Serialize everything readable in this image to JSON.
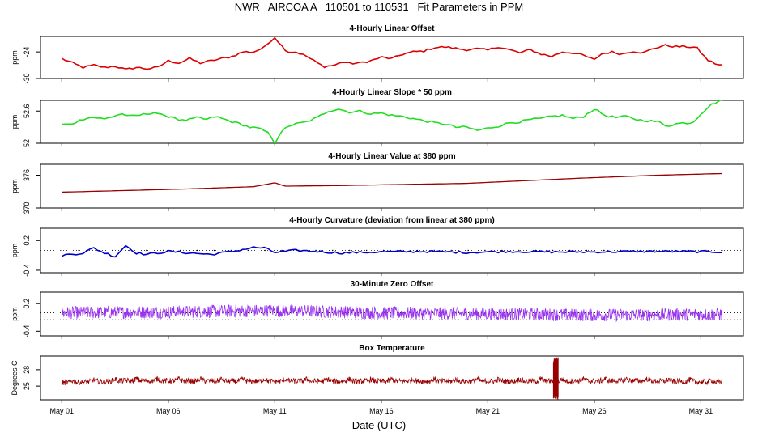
{
  "figure": {
    "title": "NWR   AIRCOA A   110501 to 110531   Fit Parameters in PPM",
    "xlabel": "Date (UTC)"
  },
  "chart_data": [
    {
      "type": "line",
      "title": "4-Hourly Linear Offset",
      "ylabel": "ppm",
      "ylim": [
        -30,
        -20.5
      ],
      "yticks": [
        -30,
        -24
      ],
      "color": "#dd0000",
      "style": "line",
      "series": [
        {
          "name": "offset",
          "anchors": [
            [
              1.0,
              -25.5
            ],
            [
              1.5,
              -26.5
            ],
            [
              2.0,
              -27.5
            ],
            [
              2.5,
              -27.0
            ],
            [
              3.0,
              -27.5
            ],
            [
              3.5,
              -27.2
            ],
            [
              4.0,
              -28.0
            ],
            [
              4.5,
              -27.5
            ],
            [
              5.0,
              -27.8
            ],
            [
              5.5,
              -27.5
            ],
            [
              6.0,
              -26.0
            ],
            [
              6.5,
              -26.5
            ],
            [
              7.0,
              -25.5
            ],
            [
              7.5,
              -26.5
            ],
            [
              8.0,
              -26.0
            ],
            [
              8.5,
              -25.5
            ],
            [
              9.0,
              -25.0
            ],
            [
              9.5,
              -24.0
            ],
            [
              10.0,
              -24.0
            ],
            [
              10.5,
              -23.0
            ],
            [
              10.8,
              -21.5
            ],
            [
              11.0,
              -20.7
            ],
            [
              11.3,
              -22.5
            ],
            [
              11.6,
              -24.0
            ],
            [
              12.0,
              -24.0
            ],
            [
              12.5,
              -25.0
            ],
            [
              13.0,
              -26.5
            ],
            [
              13.3,
              -27.3
            ],
            [
              13.8,
              -27.0
            ],
            [
              14.2,
              -26.2
            ],
            [
              14.5,
              -26.6
            ],
            [
              15.0,
              -26.5
            ],
            [
              15.5,
              -26.0
            ],
            [
              16.0,
              -25.2
            ],
            [
              16.5,
              -25.5
            ],
            [
              17.0,
              -24.5
            ],
            [
              17.5,
              -24.0
            ],
            [
              18.0,
              -23.8
            ],
            [
              18.5,
              -23.0
            ],
            [
              19.0,
              -22.9
            ],
            [
              19.5,
              -23.2
            ],
            [
              20.0,
              -23.5
            ],
            [
              20.5,
              -23.3
            ],
            [
              21.0,
              -23.6
            ],
            [
              21.5,
              -22.8
            ],
            [
              22.0,
              -23.5
            ],
            [
              22.5,
              -24.2
            ],
            [
              23.0,
              -23.5
            ],
            [
              23.5,
              -24.5
            ],
            [
              24.0,
              -25.0
            ],
            [
              24.5,
              -24.0
            ],
            [
              25.0,
              -24.2
            ],
            [
              25.5,
              -24.8
            ],
            [
              26.0,
              -25.8
            ],
            [
              26.3,
              -24.5
            ],
            [
              26.8,
              -24.0
            ],
            [
              27.3,
              -24.5
            ],
            [
              27.8,
              -23.8
            ],
            [
              28.3,
              -24.2
            ],
            [
              28.8,
              -23.2
            ],
            [
              29.3,
              -22.5
            ],
            [
              29.8,
              -22.8
            ],
            [
              30.3,
              -22.8
            ],
            [
              30.8,
              -23.0
            ],
            [
              31.3,
              -25.8
            ],
            [
              31.8,
              -26.9
            ],
            [
              32.0,
              -27.0
            ]
          ]
        }
      ]
    },
    {
      "type": "line",
      "title": "4-Hourly Linear Slope * 50 ppm",
      "ylabel": "ppm",
      "ylim": [
        52.0,
        52.8
      ],
      "yticks": [
        52.0,
        52.6
      ],
      "color": "#22dd22",
      "style": "line",
      "series": [
        {
          "name": "slope",
          "anchors": [
            [
              1.0,
              52.35
            ],
            [
              1.4,
              52.35
            ],
            [
              1.8,
              52.42
            ],
            [
              2.2,
              52.48
            ],
            [
              2.6,
              52.48
            ],
            [
              3.0,
              52.45
            ],
            [
              3.4,
              52.5
            ],
            [
              3.8,
              52.55
            ],
            [
              4.2,
              52.5
            ],
            [
              4.6,
              52.52
            ],
            [
              5.0,
              52.55
            ],
            [
              5.4,
              52.58
            ],
            [
              5.8,
              52.5
            ],
            [
              6.2,
              52.5
            ],
            [
              6.6,
              52.42
            ],
            [
              7.0,
              52.44
            ],
            [
              7.4,
              52.48
            ],
            [
              7.8,
              52.44
            ],
            [
              8.2,
              52.5
            ],
            [
              8.6,
              52.45
            ],
            [
              9.0,
              52.4
            ],
            [
              9.4,
              52.36
            ],
            [
              9.8,
              52.3
            ],
            [
              10.2,
              52.28
            ],
            [
              10.6,
              52.22
            ],
            [
              10.9,
              52.1
            ],
            [
              11.0,
              52.0
            ],
            [
              11.2,
              52.15
            ],
            [
              11.6,
              52.32
            ],
            [
              12.0,
              52.36
            ],
            [
              12.5,
              52.4
            ],
            [
              13.0,
              52.48
            ],
            [
              13.5,
              52.6
            ],
            [
              14.0,
              52.64
            ],
            [
              14.5,
              52.58
            ],
            [
              15.0,
              52.6
            ],
            [
              15.5,
              52.55
            ],
            [
              16.0,
              52.56
            ],
            [
              16.5,
              52.52
            ],
            [
              17.0,
              52.5
            ],
            [
              17.5,
              52.46
            ],
            [
              18.0,
              52.42
            ],
            [
              18.5,
              52.38
            ],
            [
              19.0,
              52.36
            ],
            [
              19.5,
              52.3
            ],
            [
              20.0,
              52.3
            ],
            [
              20.5,
              52.24
            ],
            [
              21.0,
              52.28
            ],
            [
              21.5,
              52.32
            ],
            [
              22.0,
              52.38
            ],
            [
              22.5,
              52.4
            ],
            [
              23.0,
              52.44
            ],
            [
              23.5,
              52.46
            ],
            [
              24.0,
              52.5
            ],
            [
              24.5,
              52.52
            ],
            [
              25.0,
              52.46
            ],
            [
              25.5,
              52.5
            ],
            [
              26.0,
              52.64
            ],
            [
              26.5,
              52.52
            ],
            [
              27.0,
              52.48
            ],
            [
              27.5,
              52.5
            ],
            [
              28.0,
              52.44
            ],
            [
              28.5,
              52.42
            ],
            [
              29.0,
              52.4
            ],
            [
              29.4,
              52.32
            ],
            [
              29.8,
              52.36
            ],
            [
              30.2,
              52.38
            ],
            [
              30.6,
              52.38
            ],
            [
              31.0,
              52.55
            ],
            [
              31.4,
              52.7
            ],
            [
              31.8,
              52.78
            ],
            [
              32.0,
              52.8
            ]
          ]
        }
      ]
    },
    {
      "type": "line",
      "title": "4-Hourly Linear Value at 380 ppm",
      "ylabel": "ppm",
      "ylim": [
        370,
        378
      ],
      "yticks": [
        370,
        376
      ],
      "color": "#990000",
      "style": "dots",
      "series": [
        {
          "name": "value",
          "anchors": [
            [
              1.0,
              372.9
            ],
            [
              4.0,
              373.2
            ],
            [
              7.0,
              373.5
            ],
            [
              10.0,
              373.9
            ],
            [
              11.0,
              374.6
            ],
            [
              11.5,
              374.0
            ],
            [
              14.0,
              374.1
            ],
            [
              20.0,
              374.5
            ],
            [
              25.0,
              375.4
            ],
            [
              29.0,
              376.0
            ],
            [
              32.0,
              376.3
            ]
          ]
        }
      ]
    },
    {
      "type": "line",
      "title": "4-Hourly Curvature (deviation from linear at 380 ppm)",
      "ylabel": "ppm",
      "ylim": [
        -0.45,
        0.45
      ],
      "yticks": [
        -0.4,
        0.2
      ],
      "reference_lines": [
        0.0
      ],
      "color": "#0000cc",
      "style": "line",
      "series": [
        {
          "name": "curvature",
          "anchors": [
            [
              1.0,
              -0.1
            ],
            [
              2.0,
              -0.05
            ],
            [
              2.5,
              0.05
            ],
            [
              3.0,
              -0.05
            ],
            [
              3.5,
              -0.12
            ],
            [
              4.0,
              0.1
            ],
            [
              4.5,
              -0.05
            ],
            [
              5.0,
              -0.08
            ],
            [
              6.0,
              -0.02
            ],
            [
              7.0,
              -0.05
            ],
            [
              8.0,
              -0.08
            ],
            [
              9.0,
              -0.02
            ],
            [
              10.0,
              0.06
            ],
            [
              10.5,
              0.05
            ],
            [
              11.0,
              -0.04
            ],
            [
              12.0,
              0.0
            ],
            [
              13.0,
              -0.02
            ],
            [
              14.0,
              -0.05
            ],
            [
              16.0,
              -0.03
            ],
            [
              18.0,
              -0.02
            ],
            [
              20.0,
              -0.04
            ],
            [
              22.0,
              -0.02
            ],
            [
              24.0,
              -0.03
            ],
            [
              26.0,
              -0.03
            ],
            [
              28.0,
              -0.02
            ],
            [
              30.0,
              -0.02
            ],
            [
              32.0,
              -0.03
            ]
          ]
        }
      ]
    },
    {
      "type": "line",
      "title": "30-Minute Zero Offset",
      "ylabel": "ppm",
      "ylim": [
        -0.5,
        0.45
      ],
      "yticks": [
        -0.4,
        0.2
      ],
      "reference_lines": [
        0.0,
        -0.15
      ],
      "color": "#9933ee",
      "style": "noisy",
      "series": [
        {
          "name": "zero_offset",
          "anchors": [
            [
              1.0,
              0.0
            ],
            [
              6.0,
              0.02
            ],
            [
              11.0,
              0.05
            ],
            [
              16.0,
              0.0
            ],
            [
              21.0,
              -0.02
            ],
            [
              26.0,
              -0.05
            ],
            [
              32.0,
              -0.03
            ]
          ]
        }
      ]
    },
    {
      "type": "line",
      "title": "Box Temperature",
      "ylabel": "Degrees C",
      "ylim": [
        22.5,
        30.5
      ],
      "yticks": [
        25,
        28
      ],
      "color": "#990000",
      "style": "noisy",
      "series": [
        {
          "name": "box_temp",
          "anchors": [
            [
              1.0,
              25.6
            ],
            [
              4.0,
              26.0
            ],
            [
              11.0,
              25.9
            ],
            [
              20.0,
              25.9
            ],
            [
              24.0,
              25.9
            ],
            [
              28.0,
              26.0
            ],
            [
              32.0,
              25.7
            ]
          ]
        }
      ],
      "spike": {
        "x": 24.2,
        "min": 22.5,
        "max": 30.3
      }
    }
  ],
  "x_axis": {
    "range": [
      0.0,
      33.0
    ],
    "ticks": [
      1,
      6,
      11,
      16,
      21,
      26,
      31
    ],
    "tick_labels": [
      "May 01",
      "May 06",
      "May 11",
      "May 16",
      "May 21",
      "May 26",
      "May 31"
    ]
  }
}
